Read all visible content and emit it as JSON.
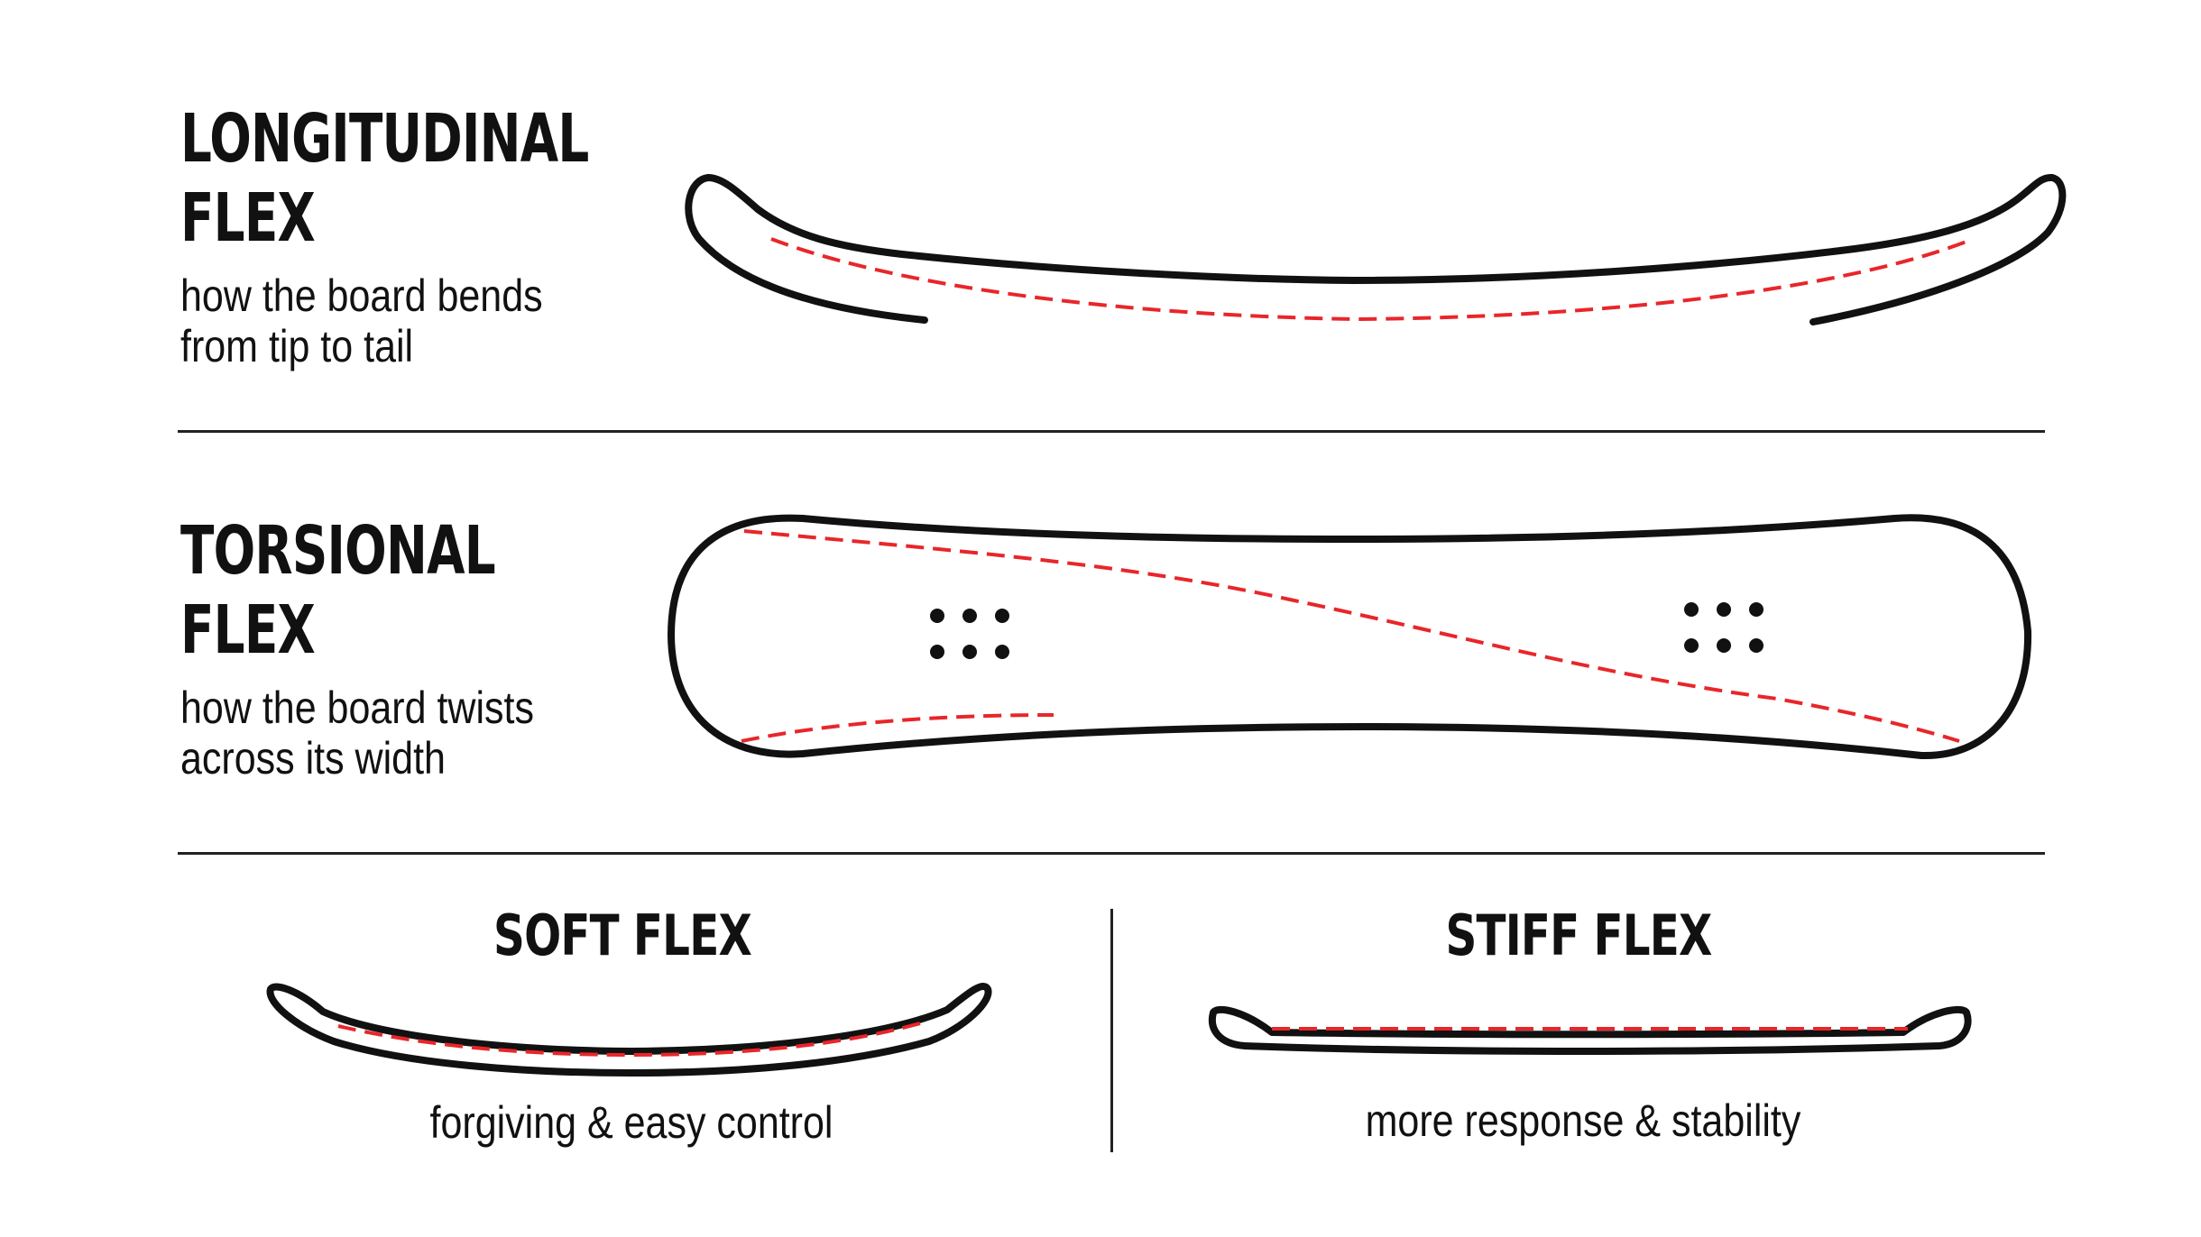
{
  "colors": {
    "outline": "#111111",
    "flex_line": "#e8262a",
    "divider": "#222222",
    "background": "#ffffff"
  },
  "longitudinal": {
    "title_line1": "LONGITUDINAL",
    "title_line2": "FLEX",
    "desc_line1": "how the board bends",
    "desc_line2": "from tip to tail"
  },
  "torsional": {
    "title_line1": "TORSIONAL",
    "title_line2": "FLEX",
    "desc_line1": "how the board twists",
    "desc_line2": "across its width"
  },
  "soft": {
    "title": "SOFT FLEX",
    "desc": "forgiving & easy control"
  },
  "stiff": {
    "title": "STIFF FLEX",
    "desc": "more response & stability"
  },
  "icons": {
    "longitudinal": "snowboard-side-profile-icon",
    "torsional": "snowboard-top-view-icon",
    "soft": "soft-flex-board-icon",
    "stiff": "stiff-flex-board-icon"
  }
}
